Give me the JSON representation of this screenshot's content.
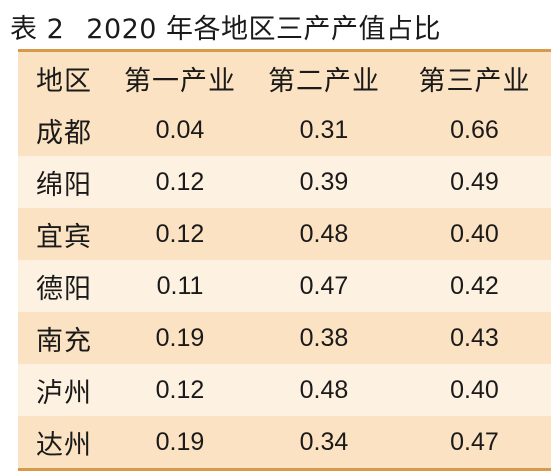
{
  "caption": {
    "table_no": "表 2",
    "title": "2020 年各地区三产产值占比"
  },
  "table": {
    "headers": [
      "地区",
      "第一产业",
      "第二产业",
      "第三产业"
    ],
    "rows": [
      {
        "region": "成都",
        "primary": "0.04",
        "secondary": "0.31",
        "tertiary": "0.66"
      },
      {
        "region": "绵阳",
        "primary": "0.12",
        "secondary": "0.39",
        "tertiary": "0.49"
      },
      {
        "region": "宜宾",
        "primary": "0.12",
        "secondary": "0.48",
        "tertiary": "0.40"
      },
      {
        "region": "德阳",
        "primary": "0.11",
        "secondary": "0.47",
        "tertiary": "0.42"
      },
      {
        "region": "南充",
        "primary": "0.19",
        "secondary": "0.38",
        "tertiary": "0.43"
      },
      {
        "region": "泸州",
        "primary": "0.12",
        "secondary": "0.48",
        "tertiary": "0.40"
      },
      {
        "region": "达州",
        "primary": "0.19",
        "secondary": "0.34",
        "tertiary": "0.47"
      }
    ]
  },
  "colors": {
    "border": "#d79a4a",
    "row_dark": "#fbe2c2",
    "row_light": "#fdf1e1"
  }
}
